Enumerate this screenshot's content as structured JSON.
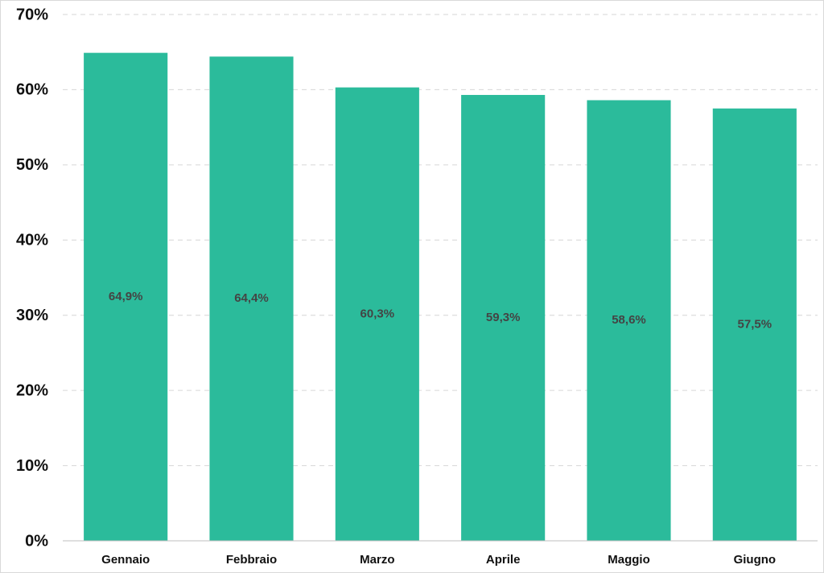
{
  "chart_data": {
    "type": "bar",
    "categories": [
      "Gennaio",
      "Febbraio",
      "Marzo",
      "Aprile",
      "Maggio",
      "Giugno"
    ],
    "values": [
      64.9,
      64.4,
      60.3,
      59.3,
      58.6,
      57.5
    ],
    "value_labels": [
      "64,9%",
      "64,4%",
      "60,3%",
      "59,3%",
      "58,6%",
      "57,5%"
    ],
    "color": "#2bbb9b",
    "ylim": [
      0,
      70
    ],
    "yticks": [
      {
        "value": 0,
        "label": "0%"
      },
      {
        "value": 10,
        "label": "10%"
      },
      {
        "value": 20,
        "label": "20%"
      },
      {
        "value": 30,
        "label": "30%"
      },
      {
        "value": 40,
        "label": "40%"
      },
      {
        "value": 50,
        "label": "50%"
      },
      {
        "value": 60,
        "label": "60%"
      },
      {
        "value": 70,
        "label": "70%"
      }
    ],
    "grid": true
  }
}
